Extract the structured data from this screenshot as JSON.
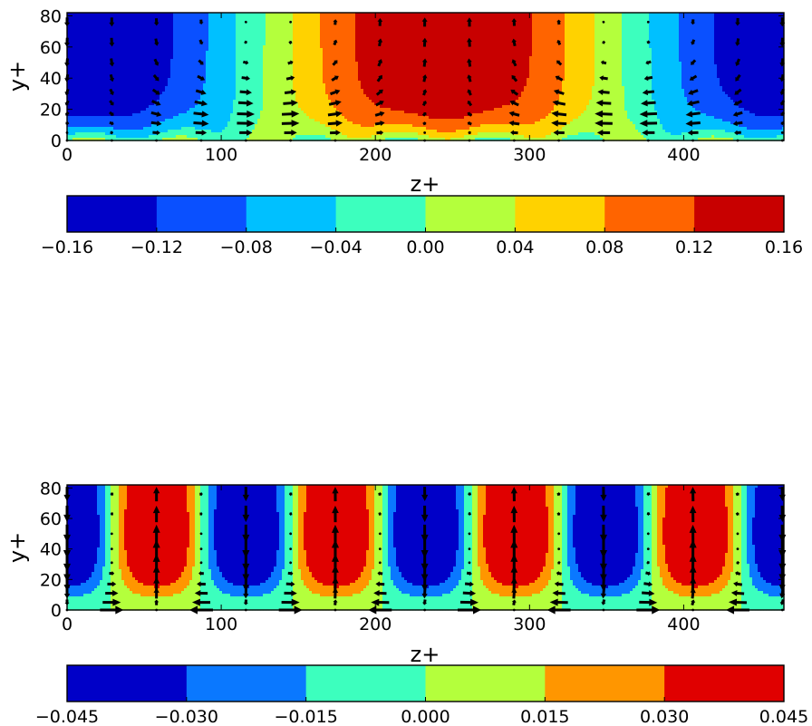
{
  "chart_data": [
    {
      "type": "contour",
      "panel": "top",
      "xlabel": "z+",
      "ylabel": "y+",
      "xlim": [
        0,
        465
      ],
      "ylim": [
        0,
        82
      ],
      "xticks": [
        0,
        100,
        200,
        300,
        400
      ],
      "xtick_labels": [
        "0",
        "100",
        "200",
        "300",
        "400"
      ],
      "yticks": [
        0,
        20,
        40,
        60,
        80
      ],
      "ytick_labels": [
        "0",
        "20",
        "40",
        "60",
        "80"
      ],
      "colorbar": {
        "levels": [
          -0.16,
          -0.12,
          -0.08,
          -0.04,
          0.0,
          0.04,
          0.08,
          0.12,
          0.16
        ],
        "tick_labels": [
          "−0.16",
          "−0.12",
          "−0.08",
          "−0.04",
          "0.00",
          "0.04",
          "0.08",
          "0.12",
          "0.16"
        ],
        "colors": [
          "#0000c8",
          "#0a50ff",
          "#00c0ff",
          "#3cffbe",
          "#b4ff3c",
          "#ffd200",
          "#ff6400",
          "#c80000"
        ]
      },
      "field": {
        "form": "A*(1-exp(-y/12))*sin(2*pi*z/465 - 0.55*pi) + B*exp(-y/9)*sin(2*pi*z/58)",
        "A": 0.168,
        "B": 0.032,
        "spanwise_period": 465
      },
      "quiver": {
        "x": [
          0,
          29,
          58,
          87,
          116,
          145,
          174,
          203,
          232,
          261,
          290,
          319,
          348,
          377,
          406,
          435,
          464
        ],
        "y": [
          0,
          5,
          11,
          17,
          24,
          31,
          40,
          50,
          63,
          76
        ],
        "color": "#000000"
      }
    },
    {
      "type": "contour",
      "panel": "bottom",
      "xlabel": "z+",
      "ylabel": "y+",
      "xlim": [
        0,
        465
      ],
      "ylim": [
        0,
        82
      ],
      "xticks": [
        0,
        100,
        200,
        300,
        400
      ],
      "xtick_labels": [
        "0",
        "100",
        "200",
        "300",
        "400"
      ],
      "yticks": [
        0,
        20,
        40,
        60,
        80
      ],
      "ytick_labels": [
        "0",
        "20",
        "40",
        "60",
        "80"
      ],
      "colorbar": {
        "levels": [
          -0.045,
          -0.03,
          -0.015,
          0.0,
          0.015,
          0.03,
          0.045
        ],
        "tick_labels": [
          "−0.045",
          "−0.030",
          "−0.015",
          "0.000",
          "0.015",
          "0.030",
          "0.045"
        ],
        "colors": [
          "#0000c8",
          "#0a78ff",
          "#3cffbe",
          "#b4ff3c",
          "#ff9600",
          "#e00000"
        ]
      },
      "field": {
        "form": "C*sin(2*pi*(z-29)/116.5) * (y/20)^1.6 * exp(-(y-20)/32)",
        "C": 0.0405,
        "spanwise_period": 116.5
      },
      "quiver": {
        "x": [
          0,
          29,
          58,
          87,
          116,
          145,
          174,
          203,
          232,
          261,
          290,
          319,
          348,
          377,
          406,
          435,
          464
        ],
        "y": [
          0,
          5,
          11,
          17,
          24,
          31,
          40,
          50,
          63,
          76
        ],
        "color": "#000000"
      }
    }
  ]
}
